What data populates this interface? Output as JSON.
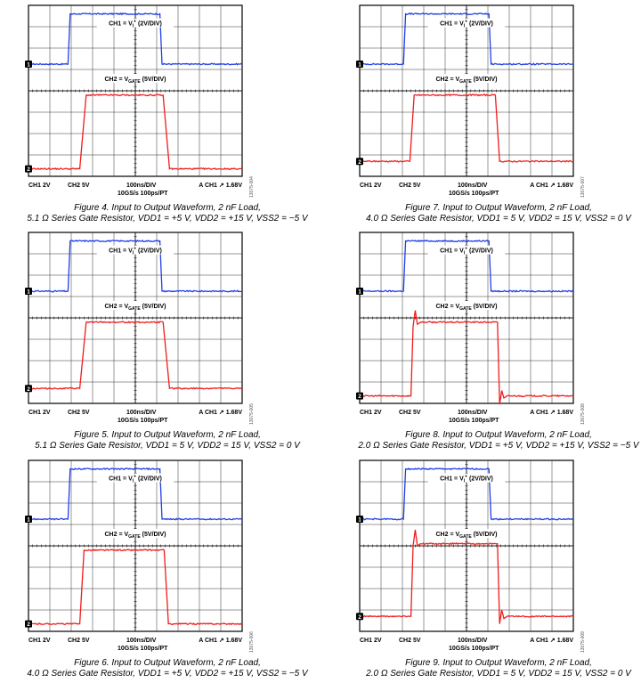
{
  "settings": {
    "ch1": "CH1  2V",
    "ch2": "CH2  5V",
    "timebase": "100ns/DIV",
    "sample_rate": "10GS/s  100ps/PT",
    "trigger": "A  CH1  ↗  1.68V",
    "ch1_marker": "1",
    "ch2_marker": "2"
  },
  "ch1_label": {
    "main": "CH1 = V",
    "sub": "I",
    "sup": "+",
    "tail": " (2V/DIV)"
  },
  "ch2_label": {
    "main": "CH2 = V",
    "sub": "GATE",
    "tail": " (5V/DIV)"
  },
  "colors": {
    "ch1": "#1f3ee8",
    "ch2": "#f01c1c",
    "grid": "#333333"
  },
  "figures": [
    {
      "id": "fig4",
      "caption1": "Figure 4. Input to Output Waveform, 2 nF Load,",
      "caption2": "5.1 Ω Series Gate Resistor, VDD1 = +5 V, VDD2 = +15 V, VSS2 = −5 V",
      "side_id": "13075-004",
      "chart_data": {
        "type": "line",
        "x_unit": "divisions",
        "xlim": [
          0,
          10
        ],
        "ylim": [
          0,
          8
        ],
        "series": [
          {
            "points": [
              [
                0,
                5.25
              ],
              [
                1.85,
                5.25
              ],
              [
                1.95,
                7.6
              ],
              [
                6.15,
                7.6
              ],
              [
                6.25,
                5.25
              ],
              [
                10,
                5.25
              ]
            ]
          },
          {
            "points": [
              [
                0,
                0.35
              ],
              [
                2.4,
                0.35
              ],
              [
                2.7,
                3.8
              ],
              [
                6.3,
                3.8
              ],
              [
                6.6,
                0.35
              ],
              [
                10,
                0.35
              ]
            ]
          }
        ]
      }
    },
    {
      "id": "fig7",
      "caption1": "Figure 7. Input to Output Waveform, 2 nF Load,",
      "caption2": "4.0 Ω Series Gate Resistor, VDD1 = 5 V, VDD2 = 15 V, VSS2 = 0 V",
      "side_id": "13075-007",
      "chart_data": {
        "type": "line",
        "x_unit": "divisions",
        "xlim": [
          0,
          10
        ],
        "ylim": [
          0,
          8
        ],
        "series": [
          {
            "points": [
              [
                0,
                5.25
              ],
              [
                2.05,
                5.25
              ],
              [
                2.15,
                7.6
              ],
              [
                6.05,
                7.6
              ],
              [
                6.15,
                5.25
              ],
              [
                10,
                5.25
              ]
            ]
          },
          {
            "points": [
              [
                0,
                0.7
              ],
              [
                2.35,
                0.7
              ],
              [
                2.55,
                3.8
              ],
              [
                6.35,
                3.8
              ],
              [
                6.55,
                0.7
              ],
              [
                10,
                0.7
              ]
            ]
          }
        ]
      }
    },
    {
      "id": "fig5",
      "caption1": "Figure 5. Input to Output Waveform, 2 nF Load,",
      "caption2": "5.1 Ω Series Gate Resistor, VDD1 = 5 V, VDD2 = 15 V, VSS2 = 0 V",
      "side_id": "13075-005",
      "chart_data": {
        "type": "line",
        "x_unit": "divisions",
        "xlim": [
          0,
          10
        ],
        "ylim": [
          0,
          8
        ],
        "series": [
          {
            "points": [
              [
                0,
                5.25
              ],
              [
                1.85,
                5.25
              ],
              [
                1.95,
                7.6
              ],
              [
                6.15,
                7.6
              ],
              [
                6.25,
                5.25
              ],
              [
                10,
                5.25
              ]
            ]
          },
          {
            "points": [
              [
                0,
                0.7
              ],
              [
                2.4,
                0.7
              ],
              [
                2.7,
                3.8
              ],
              [
                6.3,
                3.8
              ],
              [
                6.6,
                0.7
              ],
              [
                10,
                0.7
              ]
            ]
          }
        ]
      }
    },
    {
      "id": "fig8",
      "caption1": "Figure 8. Input to Output Waveform, 2 nF Load,",
      "caption2": "2.0 Ω Series Gate Resistor, VDD1 = +5 V, VDD2 = +15 V, VSS2 = −5 V",
      "side_id": "13075-008",
      "chart_data": {
        "type": "line",
        "x_unit": "divisions",
        "xlim": [
          0,
          10
        ],
        "ylim": [
          0,
          8
        ],
        "series": [
          {
            "points": [
              [
                0,
                5.25
              ],
              [
                2.05,
                5.25
              ],
              [
                2.15,
                7.6
              ],
              [
                6.05,
                7.6
              ],
              [
                6.15,
                5.25
              ],
              [
                10,
                5.25
              ]
            ]
          },
          {
            "points": [
              [
                0,
                0.35
              ],
              [
                2.4,
                0.35
              ],
              [
                2.5,
                3.6
              ],
              [
                2.6,
                4.35
              ],
              [
                2.7,
                3.7
              ],
              [
                2.85,
                3.8
              ],
              [
                6.45,
                3.8
              ],
              [
                6.55,
                -0.05
              ],
              [
                6.65,
                0.6
              ],
              [
                6.75,
                0.25
              ],
              [
                6.9,
                0.35
              ],
              [
                10,
                0.35
              ]
            ]
          }
        ]
      }
    },
    {
      "id": "fig6",
      "caption1": "Figure 6. Input to Output Waveform, 2 nF Load,",
      "caption2": "4.0 Ω Series Gate Resistor, VDD1 = +5 V, VDD2 = +15 V, VSS2 = −5 V",
      "side_id": "13075-006",
      "chart_data": {
        "type": "line",
        "x_unit": "divisions",
        "xlim": [
          0,
          10
        ],
        "ylim": [
          0,
          8
        ],
        "series": [
          {
            "points": [
              [
                0,
                5.25
              ],
              [
                1.85,
                5.25
              ],
              [
                1.95,
                7.6
              ],
              [
                6.15,
                7.6
              ],
              [
                6.25,
                5.25
              ],
              [
                10,
                5.25
              ]
            ]
          },
          {
            "points": [
              [
                0,
                0.35
              ],
              [
                2.4,
                0.35
              ],
              [
                2.6,
                3.8
              ],
              [
                6.35,
                3.8
              ],
              [
                6.55,
                0.35
              ],
              [
                10,
                0.35
              ]
            ]
          }
        ]
      }
    },
    {
      "id": "fig9",
      "caption1": "Figure 9. Input to Output Waveform, 2 nF Load,",
      "caption2": "2.0 Ω Series Gate Resistor, VDD1 = 5 V, VDD2 = 15 V, VSS2 = 0 V",
      "side_id": "13075-009",
      "chart_data": {
        "type": "line",
        "x_unit": "divisions",
        "xlim": [
          0,
          10
        ],
        "ylim": [
          0,
          8
        ],
        "series": [
          {
            "points": [
              [
                0,
                5.25
              ],
              [
                2.05,
                5.25
              ],
              [
                2.15,
                7.6
              ],
              [
                6.05,
                7.6
              ],
              [
                6.15,
                5.25
              ],
              [
                10,
                5.25
              ]
            ]
          },
          {
            "points": [
              [
                0,
                0.7
              ],
              [
                2.4,
                0.7
              ],
              [
                2.5,
                4.0
              ],
              [
                2.6,
                4.75
              ],
              [
                2.7,
                4.0
              ],
              [
                2.85,
                4.1
              ],
              [
                6.45,
                4.1
              ],
              [
                6.55,
                0.35
              ],
              [
                6.65,
                1.0
              ],
              [
                6.75,
                0.6
              ],
              [
                6.9,
                0.7
              ],
              [
                10,
                0.7
              ]
            ]
          }
        ]
      }
    }
  ]
}
